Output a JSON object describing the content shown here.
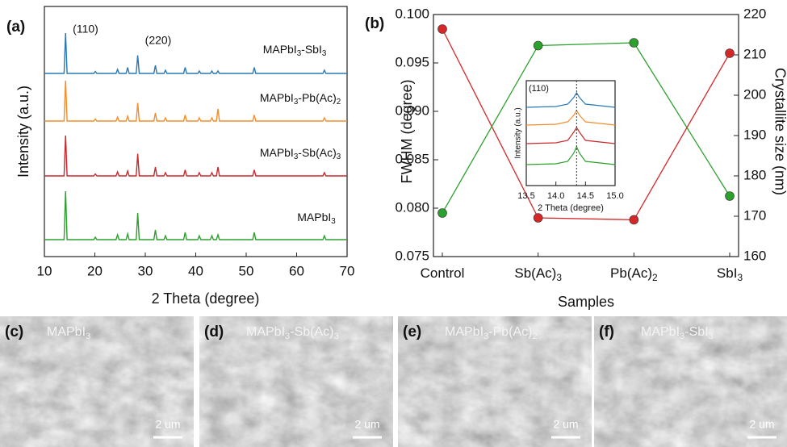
{
  "chart_data": [
    {
      "type": "line",
      "panel": "(a)",
      "xlabel": "2 Theta (degree)",
      "ylabel": "Intensity (a.u.)",
      "xlim": [
        10,
        70
      ],
      "xticks": [
        10,
        20,
        30,
        40,
        50,
        60,
        70
      ],
      "annotations": [
        "(110)",
        "(220)"
      ],
      "x": [
        10,
        13.9,
        14.2,
        14.5,
        19.8,
        20.1,
        20.4,
        24.2,
        24.5,
        24.8,
        26.2,
        26.5,
        26.8,
        28.2,
        28.5,
        28.8,
        31.7,
        32.0,
        32.3,
        33.7,
        34.0,
        34.3,
        37.6,
        37.9,
        38.2,
        40.4,
        40.7,
        41.0,
        42.9,
        43.2,
        43.5,
        44.1,
        44.4,
        44.7,
        51.3,
        51.6,
        51.9,
        65.2,
        65.5,
        65.8,
        70
      ],
      "series": [
        {
          "name": "MAPbI3-SbI3",
          "color": "#2878b5",
          "values": [
            0,
            0,
            100,
            0,
            0,
            5,
            0,
            0,
            10,
            0,
            0,
            15,
            0,
            0,
            45,
            0,
            0,
            20,
            0,
            0,
            8,
            0,
            0,
            15,
            0,
            0,
            6,
            0,
            0,
            6,
            0,
            0,
            6,
            0,
            0,
            15,
            0,
            0,
            8,
            0,
            0
          ]
        },
        {
          "name": "MAPbI3-Pb(Ac)2",
          "color": "#f28e2b",
          "values": [
            0,
            0,
            100,
            0,
            0,
            5,
            0,
            0,
            10,
            0,
            0,
            12,
            0,
            0,
            45,
            0,
            0,
            20,
            0,
            0,
            8,
            0,
            0,
            15,
            0,
            0,
            8,
            0,
            0,
            8,
            0,
            0,
            30,
            0,
            0,
            15,
            0,
            0,
            8,
            0,
            0
          ]
        },
        {
          "name": "MAPbI3-Sb(Ac)3",
          "color": "#c8282d",
          "values": [
            0,
            0,
            100,
            0,
            0,
            5,
            0,
            0,
            10,
            0,
            0,
            12,
            0,
            0,
            55,
            0,
            0,
            22,
            0,
            0,
            8,
            0,
            0,
            15,
            0,
            0,
            8,
            0,
            0,
            8,
            0,
            0,
            22,
            0,
            0,
            15,
            0,
            0,
            8,
            0,
            0
          ]
        },
        {
          "name": "MAPbI3",
          "color": "#2ca02c",
          "values": [
            0,
            0,
            100,
            0,
            0,
            5,
            0,
            0,
            10,
            0,
            0,
            12,
            0,
            0,
            55,
            0,
            0,
            20,
            0,
            0,
            8,
            0,
            0,
            15,
            0,
            0,
            8,
            0,
            0,
            8,
            0,
            0,
            10,
            0,
            0,
            15,
            0,
            0,
            8,
            0,
            0
          ]
        }
      ]
    },
    {
      "type": "line",
      "panel": "(b)",
      "xlabel": "Samples",
      "ylabel": "FWHM (degree)",
      "y2label": "Crystallite size (nm)",
      "categories": [
        "Control",
        "Sb(Ac)3",
        "Pb(Ac)2",
        "SbI3"
      ],
      "ylim": [
        0.075,
        0.1
      ],
      "yticks": [
        0.075,
        {
          "value": 0.08,
          "label": "0.080"
        },
        0.085,
        {
          "value": 0.09,
          "label": "0.090"
        },
        0.095,
        {
          "value": 0.1,
          "label": "0.100"
        }
      ],
      "y2lim": [
        160,
        220
      ],
      "y2ticks": [
        160,
        170,
        180,
        190,
        200,
        210,
        220
      ],
      "markers": true,
      "series": [
        {
          "color": "#d62728",
          "values": [
            0.0985,
            0.079,
            0.0788,
            0.096
          ]
        },
        {
          "color": "#2ca02c",
          "axis": "y2",
          "values": [
            170.8,
            212.3,
            213.0,
            175.0
          ]
        }
      ]
    },
    {
      "type": "line",
      "annotation": "(110)",
      "xlabel": "2 Theta (degree)",
      "ylabel": "Intensity (a.u.)",
      "xlim": [
        13.5,
        15
      ],
      "xticks": [
        13.5,
        {
          "value": 14,
          "label": "14.0"
        },
        14.5,
        {
          "value": 15,
          "label": "15.0"
        }
      ],
      "vline": 14.35,
      "x": [
        13.5,
        14.0,
        14.2,
        14.3,
        14.35,
        14.4,
        14.5,
        15.0
      ],
      "series": [
        {
          "color": "#2878b5",
          "values": [
            0,
            0.5,
            2,
            6,
            9,
            6,
            2,
            0
          ]
        },
        {
          "color": "#f28e2b",
          "values": [
            0,
            0.5,
            2,
            6,
            9,
            6,
            2,
            0
          ]
        },
        {
          "color": "#c8282d",
          "values": [
            0,
            0.5,
            2,
            7,
            10,
            7,
            2,
            0
          ]
        },
        {
          "color": "#2ca02c",
          "values": [
            0,
            0.5,
            2,
            7,
            11,
            7,
            2,
            0
          ]
        }
      ]
    }
  ],
  "images": [
    {
      "panel": "(c)",
      "label": "MAPbI3",
      "scale": "2 um"
    },
    {
      "panel": "(d)",
      "label": "MAPbI3-Sb(Ac)3",
      "scale": "2 um"
    },
    {
      "panel": "(e)",
      "label": "MAPbI3-Pb(Ac)2",
      "scale": "2 um"
    },
    {
      "panel": "(f)",
      "label": "MAPbI3-SbI3",
      "scale": "2 um"
    }
  ]
}
